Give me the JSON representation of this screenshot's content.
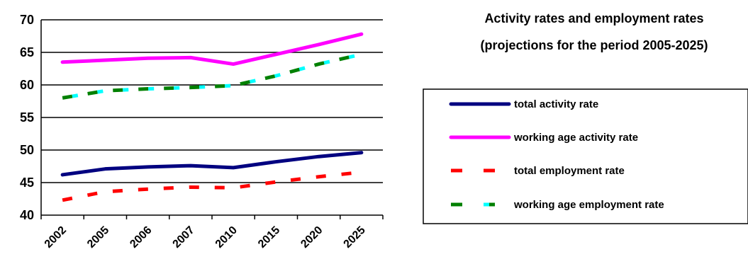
{
  "chart_data": {
    "type": "line",
    "title_lines": [
      "Activity rates and employment rates",
      "(projections for the period 2005-2025)"
    ],
    "categories": [
      "2002",
      "2005",
      "2006",
      "2007",
      "2010",
      "2015",
      "2020",
      "2025"
    ],
    "ylim": [
      40,
      70
    ],
    "yticks": [
      "40",
      "45",
      "50",
      "55",
      "60",
      "65",
      "70"
    ],
    "grid": "horizontal",
    "legend_position": "right",
    "series": [
      {
        "name": "total activity rate",
        "values": [
          46.2,
          47.1,
          47.4,
          47.6,
          47.3,
          48.2,
          49.0,
          49.6
        ],
        "color": "#000080",
        "dash": "solid"
      },
      {
        "name": "working age activity rate",
        "values": [
          63.5,
          63.8,
          64.1,
          64.2,
          63.2,
          64.7,
          66.2,
          67.8
        ],
        "color": "#ff00ff",
        "dash": "solid"
      },
      {
        "name": "total employment rate",
        "values": [
          42.3,
          43.6,
          44.0,
          44.3,
          44.2,
          45.1,
          45.9,
          46.6
        ],
        "color": "#ff0000",
        "dash": "dashed"
      },
      {
        "name": "working age employment rate",
        "values": [
          58.0,
          59.1,
          59.4,
          59.6,
          59.9,
          61.4,
          63.2,
          64.7
        ],
        "color": "#008000",
        "color2": "#00ffff",
        "dash": "dashed-two-tone"
      }
    ]
  }
}
